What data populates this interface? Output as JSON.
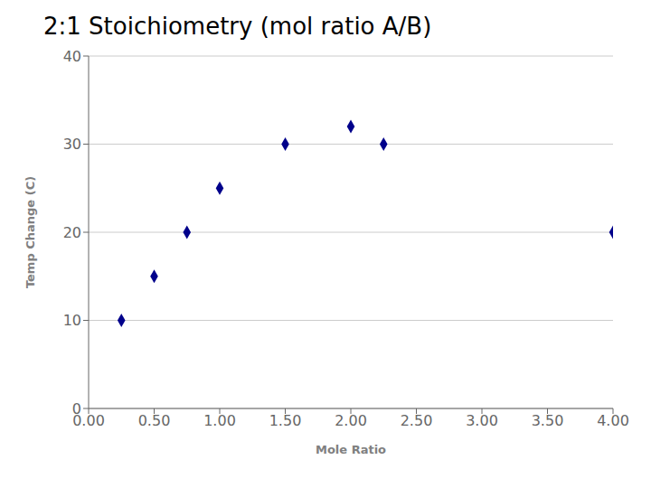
{
  "chart_data": {
    "type": "scatter",
    "title": "2:1 Stoichiometry (mol ratio A/B)",
    "xlabel": "Mole Ratio",
    "ylabel": "Temp Change (C)",
    "x": [
      0.25,
      0.5,
      0.75,
      1.0,
      1.5,
      2.0,
      2.25,
      4.0
    ],
    "y": [
      10,
      15,
      20,
      25,
      30,
      32,
      30,
      20
    ],
    "color": "#00008B",
    "marker": "diamond",
    "xlim": [
      0.0,
      4.0
    ],
    "ylim": [
      0,
      40
    ],
    "xticks": [
      {
        "value": 0.0,
        "label": "0.00"
      },
      {
        "value": 0.5,
        "label": "0.50"
      },
      {
        "value": 1.0,
        "label": "1.00"
      },
      {
        "value": 1.5,
        "label": "1.50"
      },
      {
        "value": 2.0,
        "label": "2.00"
      },
      {
        "value": 2.5,
        "label": "2.50"
      },
      {
        "value": 3.0,
        "label": "3.00"
      },
      {
        "value": 3.5,
        "label": "3.50"
      },
      {
        "value": 4.0,
        "label": "4.00"
      }
    ],
    "yticks": [
      0,
      10,
      20,
      30,
      40
    ],
    "grid": "y"
  }
}
